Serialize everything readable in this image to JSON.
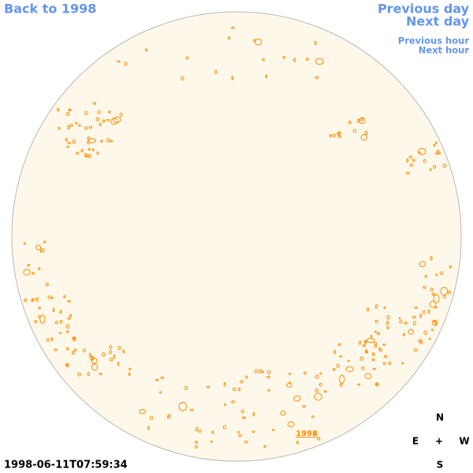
{
  "navigation": {
    "back": "Back to 1998",
    "previous_day": "Previous day",
    "next_day": "Next day",
    "previous_hour": "Previous hour",
    "next_hour": "Next hour"
  },
  "image": {
    "year_link": "1998",
    "timestamp": "1998-06-11T07:59:34"
  },
  "compass": {
    "north": "N",
    "east": "E",
    "center": "+",
    "west": "W",
    "south": "S"
  }
}
